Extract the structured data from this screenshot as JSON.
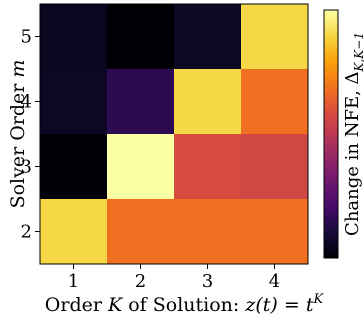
{
  "chart_data": {
    "type": "heatmap",
    "title": "",
    "x_categories": [
      "1",
      "2",
      "3",
      "4"
    ],
    "y_categories": [
      "2",
      "3",
      "4",
      "5"
    ],
    "xlabel_prefix": "Order ",
    "xlabel_K": "K",
    "xlabel_mid": " of Solution: ",
    "xlabel_formula": "z(t) = t",
    "xlabel_sup": "K",
    "ylabel_prefix": "Solver Order ",
    "ylabel_m": "m",
    "colorbar_label": "Change in NFE, Δ",
    "colorbar_sub": "K,K−1",
    "colormap": "inferno",
    "colorbar_ticks": [],
    "grid": false,
    "values": [
      {
        "m": 5,
        "K": 1,
        "v": 0.05
      },
      {
        "m": 5,
        "K": 2,
        "v": 0.0
      },
      {
        "m": 5,
        "K": 3,
        "v": 0.06
      },
      {
        "m": 5,
        "K": 4,
        "v": 0.9
      },
      {
        "m": 4,
        "K": 1,
        "v": 0.06
      },
      {
        "m": 4,
        "K": 2,
        "v": 0.15
      },
      {
        "m": 4,
        "K": 3,
        "v": 0.9
      },
      {
        "m": 4,
        "K": 4,
        "v": 0.68
      },
      {
        "m": 3,
        "K": 1,
        "v": 0.0
      },
      {
        "m": 3,
        "K": 2,
        "v": 1.0
      },
      {
        "m": 3,
        "K": 3,
        "v": 0.58
      },
      {
        "m": 3,
        "K": 4,
        "v": 0.56
      },
      {
        "m": 2,
        "K": 1,
        "v": 0.9
      },
      {
        "m": 2,
        "K": 2,
        "v": 0.68
      },
      {
        "m": 2,
        "K": 3,
        "v": 0.68
      },
      {
        "m": 2,
        "K": 4,
        "v": 0.68
      }
    ]
  }
}
